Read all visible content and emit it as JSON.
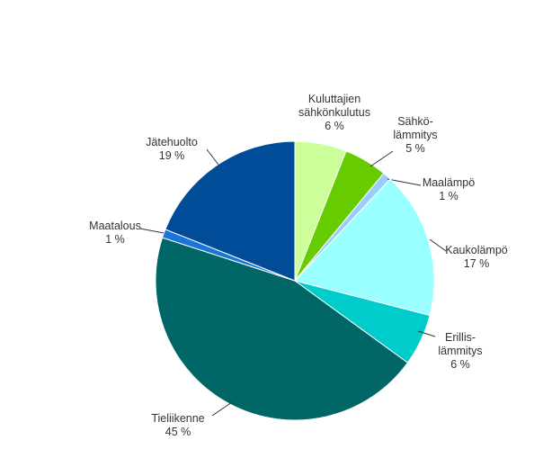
{
  "chart_data": {
    "type": "pie",
    "categories": [
      "Kuluttajien sähkönkulutus",
      "Sähkö-lämmitys",
      "Maalämpö",
      "Kaukolämpö",
      "Erillis-lämmitys",
      "Tieliikenne",
      "Maatalous",
      "Jätehuolto"
    ],
    "values": [
      6,
      5,
      1,
      17,
      6,
      45,
      1,
      19
    ],
    "value_labels": [
      "6 %",
      "5 %",
      "1 %",
      "17 %",
      "6 %",
      "45 %",
      "1 %",
      "19 %"
    ],
    "colors": [
      "#ccff99",
      "#66cc00",
      "#99ccff",
      "#99ffff",
      "#00cccc",
      "#006666",
      "#1a75d9",
      "#004c99"
    ]
  }
}
